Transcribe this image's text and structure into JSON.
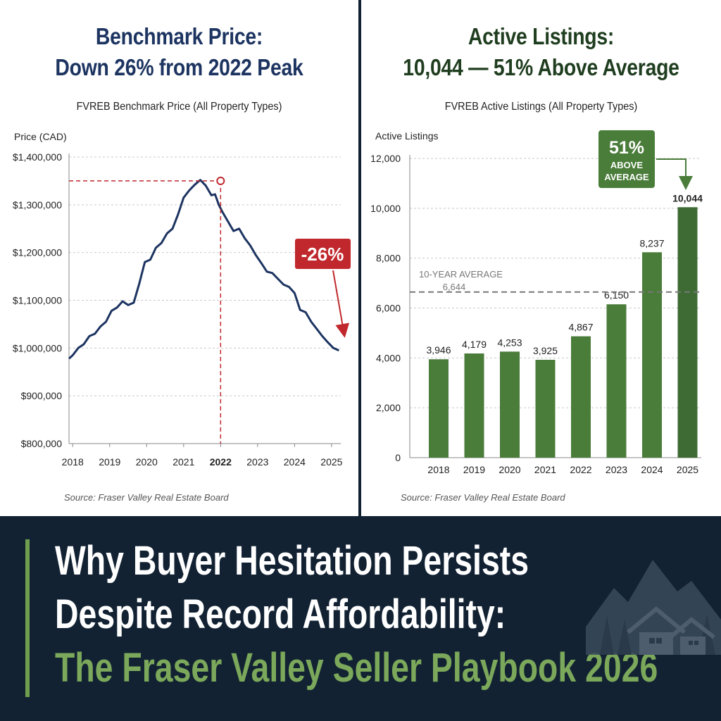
{
  "left": {
    "title_line1": "Benchmark Price:",
    "title_line2": "Down 26% from 2022 Peak",
    "subtitle": "FVREB Benchmark Price (All Property Types)",
    "source": "Source: Fraser Valley Real Estate Board"
  },
  "right": {
    "title_line1": "Active Listings:",
    "title_line2": "10,044 — 51% Above Average",
    "subtitle": "FVREB Active Listings (All Property Types)",
    "source": "Source: Fraser Valley Real Estate Board"
  },
  "headline": {
    "line1": "Why Buyer Hesitation Persists",
    "line2": "Despite Record Affordability:",
    "line3": "The Fraser Valley Seller Playbook 2026"
  },
  "colors": {
    "navy": "#1d3461",
    "red": "#c0282d",
    "green": "#4a7c3a",
    "dark_green": "#3d6b33",
    "background": "#122233",
    "accent_green": "#7ba85a"
  },
  "chart_data": [
    {
      "type": "line",
      "title": "FVREB Benchmark Price (All Property Types)",
      "ylabel": "Price (CAD)",
      "xlabel": "",
      "ylim": [
        800000,
        1400000
      ],
      "xlim": [
        2017.9,
        2025.25
      ],
      "yticks": [
        "$800,000",
        "$900,000",
        "$1,000,000",
        "$1,100,000",
        "$1,200,000",
        "$1,300,000",
        "$1,400,000"
      ],
      "xticks": [
        "2018",
        "2019",
        "2020",
        "2021",
        "2022",
        "2023",
        "2024",
        "2025"
      ],
      "highlight_tick": "2022",
      "grid": true,
      "series": [
        {
          "x": [
            2017.9,
            2018.0,
            2018.15,
            2018.3,
            2018.45,
            2018.6,
            2018.75,
            2018.9,
            2019.05,
            2019.2,
            2019.35,
            2019.5,
            2019.65,
            2019.8,
            2019.95,
            2020.1,
            2020.25,
            2020.4,
            2020.55,
            2020.7,
            2020.85,
            2021.0,
            2021.15,
            2021.3,
            2021.45,
            2021.6,
            2021.75,
            2021.85,
            2021.95,
            2022.05,
            2022.2,
            2022.35,
            2022.5,
            2022.65,
            2022.8,
            2022.95,
            2023.1,
            2023.25,
            2023.4,
            2023.55,
            2023.7,
            2023.85,
            2024.0,
            2024.15,
            2024.3,
            2024.45,
            2024.6,
            2024.75,
            2024.9,
            2025.05,
            2025.2
          ],
          "values": [
            978000,
            985000,
            1000000,
            1008000,
            1025000,
            1030000,
            1045000,
            1055000,
            1078000,
            1085000,
            1098000,
            1090000,
            1095000,
            1135000,
            1180000,
            1185000,
            1210000,
            1220000,
            1240000,
            1250000,
            1280000,
            1315000,
            1330000,
            1342000,
            1352000,
            1340000,
            1320000,
            1322000,
            1300000,
            1285000,
            1265000,
            1245000,
            1250000,
            1230000,
            1215000,
            1195000,
            1178000,
            1160000,
            1157000,
            1145000,
            1133000,
            1128000,
            1115000,
            1080000,
            1075000,
            1055000,
            1040000,
            1025000,
            1012000,
            1000000,
            995000
          ]
        }
      ],
      "peak": {
        "x": 2022.0,
        "value": 1350000
      },
      "annotation": "-26%"
    },
    {
      "type": "bar",
      "title": "FVREB Active Listings (All Property Types)",
      "ylabel": "Active Listings",
      "xlabel": "",
      "ylim": [
        0,
        12000
      ],
      "yticks": [
        "0",
        "2,000",
        "4,000",
        "6,000",
        "8,000",
        "10,000",
        "12,000"
      ],
      "categories": [
        "2018",
        "2019",
        "2020",
        "2021",
        "2022",
        "2023",
        "2024",
        "2025"
      ],
      "values": [
        3946,
        4179,
        4253,
        3925,
        4867,
        6150,
        8237,
        10044
      ],
      "value_labels": [
        "3,946",
        "4,179",
        "4,253",
        "3,925",
        "4,867",
        "6,150",
        "8,237",
        "10,044"
      ],
      "average": {
        "label": "10-YEAR AVERAGE",
        "value_label": "6,644",
        "value": 6644
      },
      "callout": {
        "line1": "51%",
        "line2": "ABOVE",
        "line3": "AVERAGE"
      },
      "grid": true
    }
  ]
}
